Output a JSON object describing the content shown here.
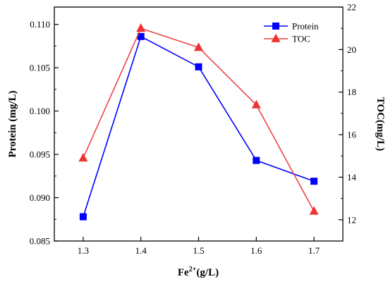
{
  "chart_data": {
    "type": "line",
    "x": [
      1.3,
      1.4,
      1.5,
      1.6,
      1.7
    ],
    "xticks": [
      "1.3",
      "1.4",
      "1.5",
      "1.6",
      "1.7"
    ],
    "xlim": [
      1.25,
      1.75
    ],
    "xlabel": {
      "base": "Fe",
      "sup": "2+",
      "suffix": "(g/L)"
    },
    "ylabel_left": "Protein (mg/L)",
    "ylabel_right": "TOC(mg/L)",
    "ylim_left": [
      0.085,
      0.112
    ],
    "ylim_right": [
      11,
      22
    ],
    "yticks_left": [
      "0.085",
      "0.090",
      "0.095",
      "0.100",
      "0.105",
      "0.110"
    ],
    "yticks_right": [
      "12",
      "14",
      "16",
      "18",
      "20",
      "22"
    ],
    "grid": false,
    "legend_position": "top-right",
    "series": [
      {
        "name": "Protein",
        "axis": "left",
        "marker": "square",
        "color": "#0000ff",
        "values": [
          0.0878,
          0.1086,
          0.1051,
          0.0943,
          0.0919
        ]
      },
      {
        "name": "TOC",
        "axis": "right",
        "marker": "triangle",
        "color": "#ff0000",
        "line_color": "#ee4444",
        "marker_color": "#ee3333",
        "values": [
          14.9,
          21.0,
          20.1,
          17.4,
          12.4
        ]
      }
    ]
  }
}
